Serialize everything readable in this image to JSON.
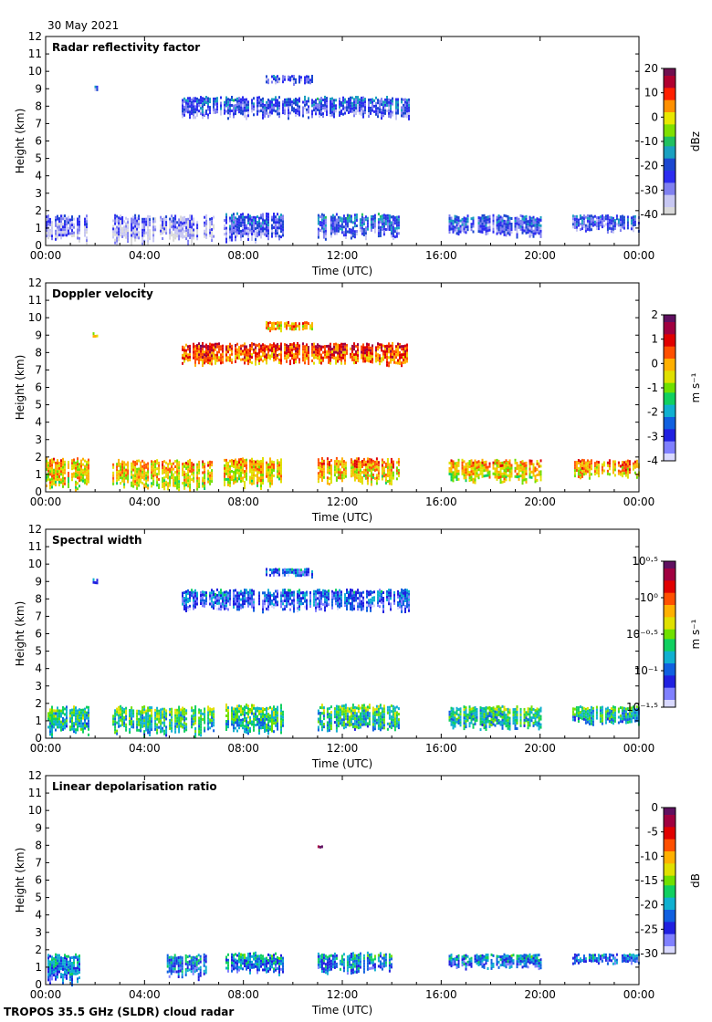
{
  "date_label": "30 May 2021",
  "footer_label": "TROPOS 35.5 GHz (SLDR) cloud radar",
  "chart_data": [
    {
      "type": "heatmap",
      "title": "Radar reflectivity factor",
      "xlabel": "Time (UTC)",
      "ylabel": "Height (km)",
      "xticks": [
        "00:00",
        "04:00",
        "08:00",
        "12:00",
        "16:00",
        "20:00",
        "00:00"
      ],
      "xlim": [
        0,
        24
      ],
      "ylim": [
        0,
        12
      ],
      "yticks": [
        "0",
        "1",
        "2",
        "3",
        "4",
        "5",
        "6",
        "7",
        "8",
        "9",
        "10",
        "11",
        "12"
      ],
      "colorbar": {
        "unit_label": "dBz",
        "ticks": [
          "20",
          "10",
          "0",
          "-10",
          "-20",
          "-30",
          "-40"
        ],
        "range": [
          -40,
          20
        ]
      },
      "palette": "reflectivity",
      "cloud_layers": [
        {
          "t_start": 0.0,
          "t_end": 1.7,
          "base_km": 0.1,
          "top_km": 1.8,
          "level": 0.08
        },
        {
          "t_start": 2.7,
          "t_end": 6.8,
          "base_km": 0.1,
          "top_km": 1.8,
          "level": 0.06
        },
        {
          "t_start": 7.2,
          "t_end": 9.6,
          "base_km": 0.2,
          "top_km": 1.9,
          "level": 0.18
        },
        {
          "t_start": 11.0,
          "t_end": 14.3,
          "base_km": 0.4,
          "top_km": 1.9,
          "level": 0.22
        },
        {
          "t_start": 16.3,
          "t_end": 20.0,
          "base_km": 0.5,
          "top_km": 1.8,
          "level": 0.2
        },
        {
          "t_start": 21.3,
          "t_end": 24.0,
          "base_km": 0.8,
          "top_km": 1.8,
          "level": 0.18
        },
        {
          "t_start": 5.5,
          "t_end": 14.7,
          "base_km": 7.3,
          "top_km": 8.6,
          "level": 0.2
        },
        {
          "t_start": 8.9,
          "t_end": 10.8,
          "base_km": 9.3,
          "top_km": 9.8,
          "level": 0.15
        },
        {
          "t_start": 1.9,
          "t_end": 2.1,
          "base_km": 8.9,
          "top_km": 9.2,
          "level": 0.15
        }
      ]
    },
    {
      "type": "heatmap",
      "title": "Doppler velocity",
      "xlabel": "Time (UTC)",
      "ylabel": "Height (km)",
      "xticks": [
        "00:00",
        "04:00",
        "08:00",
        "12:00",
        "16:00",
        "20:00",
        "00:00"
      ],
      "xlim": [
        0,
        24
      ],
      "ylim": [
        0,
        12
      ],
      "yticks": [
        "0",
        "1",
        "2",
        "3",
        "4",
        "5",
        "6",
        "7",
        "8",
        "9",
        "10",
        "11",
        "12"
      ],
      "colorbar": {
        "unit_label": "m s⁻¹",
        "ticks": [
          "2",
          "1",
          "0",
          "-1",
          "-2",
          "-3",
          "-4"
        ],
        "range": [
          -4,
          2
        ]
      },
      "palette": "velocity",
      "cloud_layers": [
        {
          "t_start": 0.0,
          "t_end": 1.7,
          "base_km": 0.1,
          "top_km": 2.0,
          "level": 0.55
        },
        {
          "t_start": 2.7,
          "t_end": 6.8,
          "base_km": 0.1,
          "top_km": 1.9,
          "level": 0.55
        },
        {
          "t_start": 7.2,
          "t_end": 9.6,
          "base_km": 0.2,
          "top_km": 2.0,
          "level": 0.55
        },
        {
          "t_start": 11.0,
          "t_end": 14.3,
          "base_km": 0.4,
          "top_km": 2.0,
          "level": 0.58
        },
        {
          "t_start": 16.3,
          "t_end": 20.0,
          "base_km": 0.5,
          "top_km": 1.9,
          "level": 0.55
        },
        {
          "t_start": 21.3,
          "t_end": 24.0,
          "base_km": 0.8,
          "top_km": 1.9,
          "level": 0.6
        },
        {
          "t_start": 5.5,
          "t_end": 14.7,
          "base_km": 7.3,
          "top_km": 8.6,
          "level": 0.7
        },
        {
          "t_start": 8.9,
          "t_end": 10.8,
          "base_km": 9.3,
          "top_km": 9.8,
          "level": 0.6
        },
        {
          "t_start": 1.9,
          "t_end": 2.1,
          "base_km": 8.9,
          "top_km": 9.2,
          "level": 0.55
        }
      ]
    },
    {
      "type": "heatmap",
      "title": "Spectral width",
      "xlabel": "Time (UTC)",
      "ylabel": "Height (km)",
      "xticks": [
        "00:00",
        "04:00",
        "08:00",
        "12:00",
        "16:00",
        "20:00",
        "00:00"
      ],
      "xlim": [
        0,
        24
      ],
      "ylim": [
        0,
        12
      ],
      "yticks": [
        "0",
        "1",
        "2",
        "3",
        "4",
        "5",
        "6",
        "7",
        "8",
        "9",
        "10",
        "11",
        "12"
      ],
      "colorbar": {
        "unit_label": "m s⁻¹",
        "ticks": [
          "10⁰·⁵",
          "10⁰",
          "10⁻⁰·⁵",
          "10⁻¹",
          "10⁻¹·⁵"
        ],
        "range": [
          -1.5,
          0.5
        ]
      },
      "palette": "width",
      "cloud_layers": [
        {
          "t_start": 0.0,
          "t_end": 1.7,
          "base_km": 0.1,
          "top_km": 1.9,
          "level": 0.32
        },
        {
          "t_start": 2.7,
          "t_end": 6.8,
          "base_km": 0.1,
          "top_km": 1.9,
          "level": 0.34
        },
        {
          "t_start": 7.2,
          "t_end": 9.6,
          "base_km": 0.2,
          "top_km": 2.0,
          "level": 0.34
        },
        {
          "t_start": 11.0,
          "t_end": 14.3,
          "base_km": 0.4,
          "top_km": 2.0,
          "level": 0.34
        },
        {
          "t_start": 16.3,
          "t_end": 20.0,
          "base_km": 0.5,
          "top_km": 1.9,
          "level": 0.32
        },
        {
          "t_start": 21.3,
          "t_end": 24.0,
          "base_km": 0.8,
          "top_km": 1.9,
          "level": 0.3
        },
        {
          "t_start": 5.5,
          "t_end": 14.7,
          "base_km": 7.3,
          "top_km": 8.6,
          "level": 0.14
        },
        {
          "t_start": 8.9,
          "t_end": 10.8,
          "base_km": 9.3,
          "top_km": 9.8,
          "level": 0.14
        },
        {
          "t_start": 1.9,
          "t_end": 2.1,
          "base_km": 8.9,
          "top_km": 9.2,
          "level": 0.14
        }
      ]
    },
    {
      "type": "heatmap",
      "title": "Linear depolarisation ratio",
      "xlabel": "Time (UTC)",
      "ylabel": "Height (km)",
      "xticks": [
        "00:00",
        "04:00",
        "08:00",
        "12:00",
        "16:00",
        "20:00",
        "00:00"
      ],
      "xlim": [
        0,
        24
      ],
      "ylim": [
        0,
        12
      ],
      "yticks": [
        "0",
        "1",
        "2",
        "3",
        "4",
        "5",
        "6",
        "7",
        "8",
        "9",
        "10",
        "11",
        "12"
      ],
      "colorbar": {
        "unit_label": "dB",
        "ticks": [
          "0",
          "-5",
          "-10",
          "-15",
          "-20",
          "-25",
          "-30"
        ],
        "range": [
          -30,
          0
        ]
      },
      "palette": "ldr",
      "cloud_layers": [
        {
          "t_start": 0.0,
          "t_end": 1.4,
          "base_km": 0.0,
          "top_km": 1.8,
          "level": 0.2
        },
        {
          "t_start": 4.9,
          "t_end": 6.5,
          "base_km": 0.3,
          "top_km": 1.8,
          "level": 0.2
        },
        {
          "t_start": 7.2,
          "t_end": 9.6,
          "base_km": 0.6,
          "top_km": 1.9,
          "level": 0.22
        },
        {
          "t_start": 11.0,
          "t_end": 14.0,
          "base_km": 0.6,
          "top_km": 1.9,
          "level": 0.22
        },
        {
          "t_start": 16.3,
          "t_end": 20.0,
          "base_km": 0.9,
          "top_km": 1.8,
          "level": 0.2
        },
        {
          "t_start": 21.3,
          "t_end": 24.0,
          "base_km": 1.2,
          "top_km": 1.8,
          "level": 0.18
        },
        {
          "t_start": 11.0,
          "t_end": 11.2,
          "base_km": 7.8,
          "top_km": 8.0,
          "level": 0.9
        }
      ]
    }
  ]
}
